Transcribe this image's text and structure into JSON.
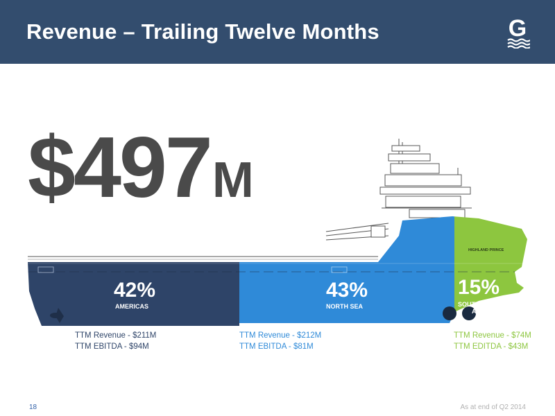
{
  "header": {
    "title": "Revenue – Trailing Twelve Months",
    "logo": "G"
  },
  "headline": {
    "amount": "$497",
    "unit": "M"
  },
  "ship": {
    "name_label": "HIGHLAND PRINCE"
  },
  "regions": [
    {
      "percent": "42%",
      "name": "AMERICAS",
      "revenue": "TTM Revenue - $211M",
      "ebitda": "TTM EBITDA - $94M",
      "color": "#2e4468",
      "text_color": "#2e4468"
    },
    {
      "percent": "43%",
      "name": "NORTH SEA",
      "revenue": "TTM Revenue - $212M",
      "ebitda": "TTM EBITDA - $81M",
      "color": "#2f8ad8",
      "text_color": "#2f8ad8"
    },
    {
      "percent": "15%",
      "name_line1": "SOUTHEAST",
      "name_line2": "ASIA",
      "revenue": "TTM Revenue - $74M",
      "ebitda": "TTM EDITDA - $43M",
      "color": "#8dc63f",
      "text_color": "#8dc63f"
    }
  ],
  "footer": {
    "page": "18",
    "note": "As at end of Q2 2014"
  }
}
